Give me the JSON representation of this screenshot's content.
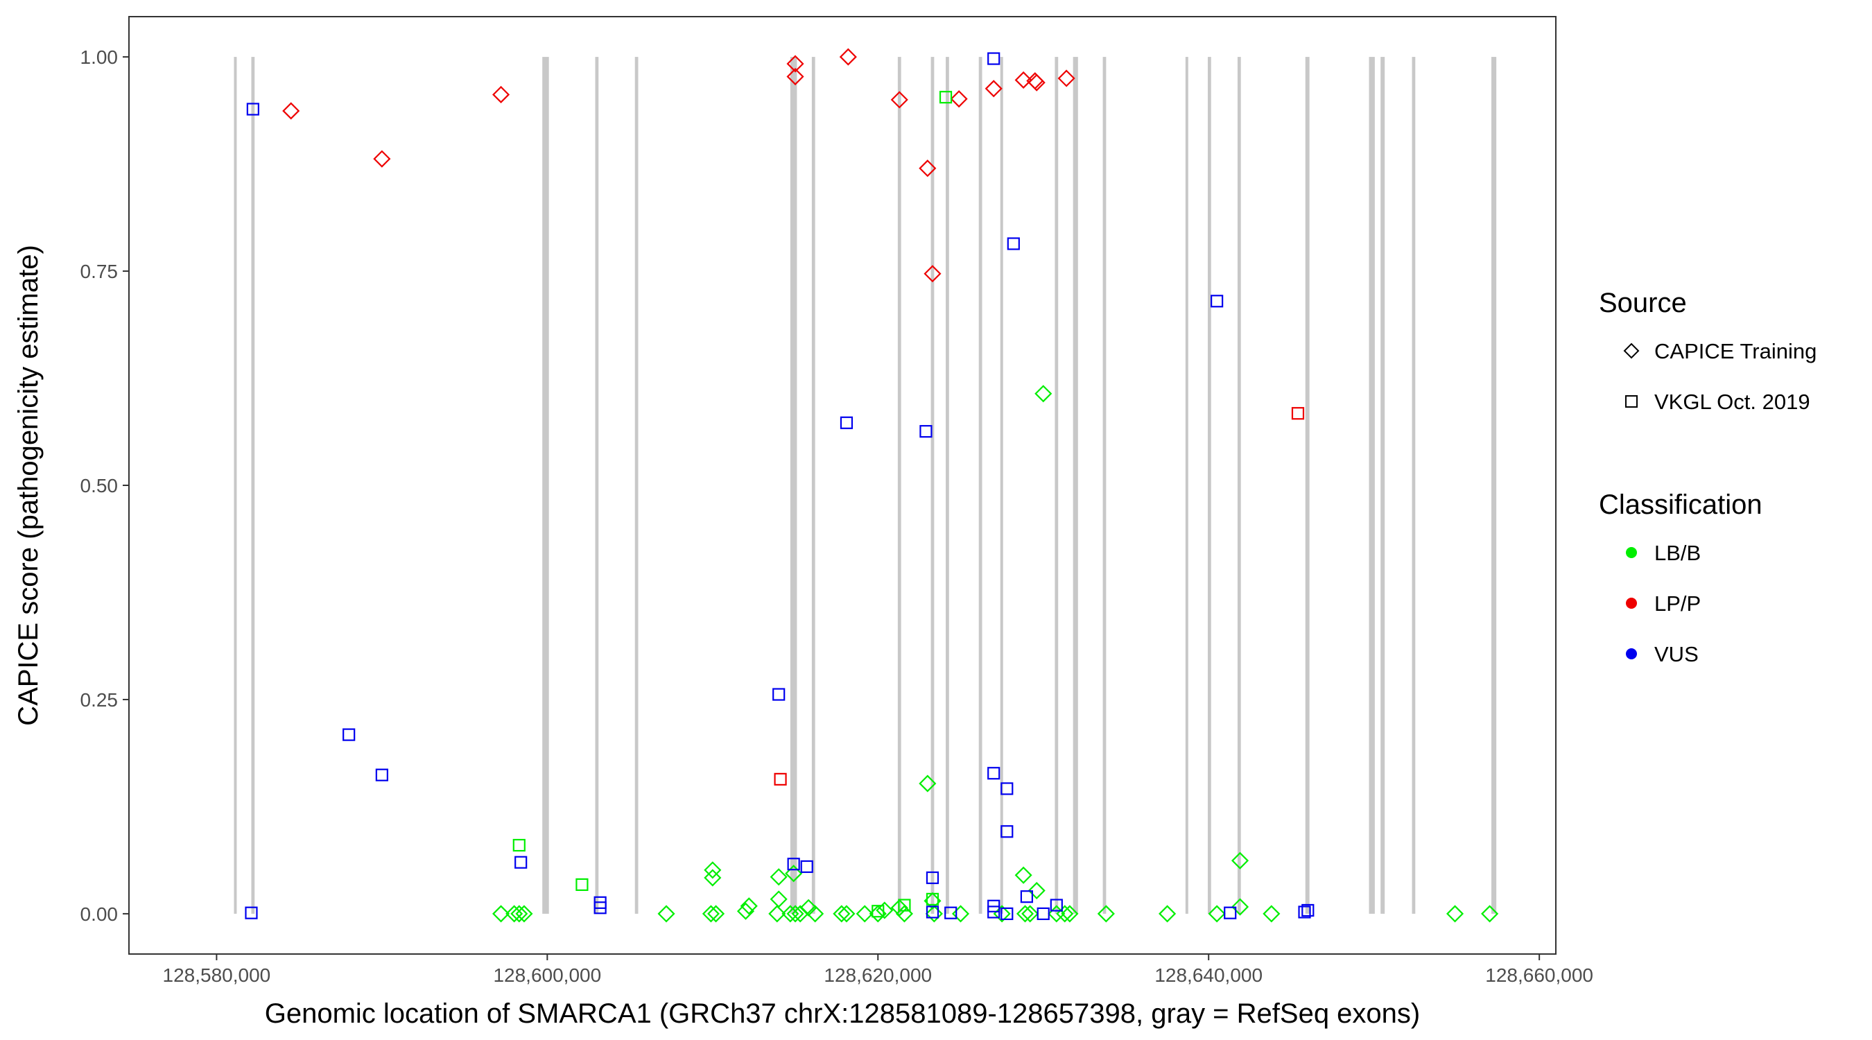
{
  "chart_data": {
    "type": "scatter",
    "xlabel": "Genomic location of SMARCA1 (GRCh37 chrX:128581089-128657398, gray = RefSeq exons)",
    "ylabel": "CAPICE score (pathogenicity estimate)",
    "xlim": [
      128574700,
      128661000
    ],
    "ylim": [
      -0.047,
      1.047
    ],
    "x_ticks": [
      128580000,
      128600000,
      128620000,
      128640000,
      128660000
    ],
    "x_tick_labels": [
      "128,580,000",
      "128,600,000",
      "128,620,000",
      "128,640,000",
      "128,660,000"
    ],
    "y_ticks": [
      0,
      0.25,
      0.5,
      0.75,
      1.0
    ],
    "y_tick_labels": [
      "0.00",
      "0.25",
      "0.50",
      "0.75",
      "1.00"
    ],
    "grid": false,
    "exons": [
      [
        128581050,
        128581200
      ],
      [
        128582100,
        128582300
      ],
      [
        128599700,
        128600100
      ],
      [
        128602900,
        128603100
      ],
      [
        128605300,
        128605500
      ],
      [
        128614700,
        128615100
      ],
      [
        128616000,
        128616200
      ],
      [
        128621200,
        128621400
      ],
      [
        128623200,
        128623400
      ],
      [
        128624100,
        128624300
      ],
      [
        128626100,
        128626300
      ],
      [
        128627400,
        128627550
      ],
      [
        128630700,
        128630900
      ],
      [
        128631800,
        128632100
      ],
      [
        128633600,
        128633800
      ],
      [
        128638600,
        128638750
      ],
      [
        128639950,
        128640150
      ],
      [
        128641750,
        128641950
      ],
      [
        128645850,
        128646100
      ],
      [
        128649700,
        128650050
      ],
      [
        128650400,
        128650650
      ],
      [
        128652300,
        128652500
      ],
      [
        128657100,
        128657400
      ]
    ],
    "legends": [
      {
        "title": "Source",
        "items": [
          {
            "label": "CAPICE Training",
            "shape": "diamond"
          },
          {
            "label": "VKGL Oct. 2019",
            "shape": "square"
          }
        ]
      },
      {
        "title": "Classification",
        "items": [
          {
            "label": "LB/B",
            "color": "#00ee00"
          },
          {
            "label": "LP/P",
            "color": "#ee0000"
          },
          {
            "label": "VUS",
            "color": "#0000ee"
          }
        ]
      }
    ],
    "legend_placement": "right",
    "colors": {
      "LB/B": "#00ee00",
      "LP/P": "#ee0000",
      "VUS": "#0000ee",
      "exon": "#c8c8c8"
    },
    "series": [
      {
        "source": "CAPICE Training",
        "classification": "LP/P",
        "shape": "diamond",
        "points": [
          [
            128584500,
            0.937
          ],
          [
            128590000,
            0.881
          ],
          [
            128597200,
            0.956
          ],
          [
            128615000,
            0.992
          ],
          [
            128615000,
            0.977
          ],
          [
            128618200,
            1.0
          ],
          [
            128621300,
            0.95
          ],
          [
            128623000,
            0.87
          ],
          [
            128623300,
            0.747
          ],
          [
            128624900,
            0.951
          ],
          [
            128627000,
            0.963
          ],
          [
            128628800,
            0.973
          ],
          [
            128629500,
            0.972
          ],
          [
            128629600,
            0.97
          ],
          [
            128631400,
            0.975
          ]
        ]
      },
      {
        "source": "CAPICE Training",
        "classification": "LB/B",
        "shape": "diamond",
        "points": [
          [
            128630000,
            0.607
          ],
          [
            128623000,
            0.152
          ],
          [
            128641900,
            0.062
          ],
          [
            128610000,
            0.051
          ],
          [
            128610000,
            0.042
          ],
          [
            128614000,
            0.043
          ],
          [
            128614900,
            0.047
          ],
          [
            128628800,
            0.045
          ],
          [
            128629600,
            0.027
          ],
          [
            128614000,
            0.017
          ],
          [
            128623300,
            0.015
          ],
          [
            128612200,
            0.009
          ],
          [
            128621300,
            0.007
          ],
          [
            128615800,
            0.007
          ],
          [
            128620400,
            0.004
          ],
          [
            128641900,
            0.008
          ],
          [
            128612000,
            0.003
          ],
          [
            128597200,
            0.0
          ],
          [
            128598000,
            0.0
          ],
          [
            128598300,
            0.0
          ],
          [
            128598600,
            0.0
          ],
          [
            128607200,
            0.0
          ],
          [
            128609900,
            0.0
          ],
          [
            128610200,
            0.0
          ],
          [
            128613900,
            0.0
          ],
          [
            128614700,
            0.0
          ],
          [
            128615000,
            0.0
          ],
          [
            128615300,
            0.0
          ],
          [
            128616200,
            0.0
          ],
          [
            128617800,
            0.0
          ],
          [
            128618100,
            0.0
          ],
          [
            128619200,
            0.0
          ],
          [
            128620000,
            0.0
          ],
          [
            128621600,
            0.0
          ],
          [
            128623400,
            0.0
          ],
          [
            128625000,
            0.0
          ],
          [
            128627500,
            0.0
          ],
          [
            128628900,
            0.0
          ],
          [
            128629200,
            0.0
          ],
          [
            128630800,
            0.0
          ],
          [
            128631300,
            0.0
          ],
          [
            128631600,
            0.0
          ],
          [
            128633800,
            0.0
          ],
          [
            128637500,
            0.0
          ],
          [
            128640500,
            0.0
          ],
          [
            128643800,
            0.0
          ],
          [
            128654900,
            0.0
          ],
          [
            128657000,
            0.0
          ]
        ]
      },
      {
        "source": "VKGL Oct. 2019",
        "classification": "VUS",
        "shape": "square",
        "points": [
          [
            128582200,
            0.939
          ],
          [
            128588000,
            0.209
          ],
          [
            128590000,
            0.162
          ],
          [
            128582100,
            0.001
          ],
          [
            128598400,
            0.06
          ],
          [
            128603200,
            0.013
          ],
          [
            128603200,
            0.007
          ],
          [
            128614000,
            0.256
          ],
          [
            128614900,
            0.058
          ],
          [
            128615700,
            0.055
          ],
          [
            128618100,
            0.573
          ],
          [
            128622900,
            0.563
          ],
          [
            128623300,
            0.042
          ],
          [
            128623300,
            0.002
          ],
          [
            128624400,
            0.001
          ],
          [
            128627000,
            0.998
          ],
          [
            128628200,
            0.782
          ],
          [
            128627000,
            0.164
          ],
          [
            128627800,
            0.146
          ],
          [
            128627800,
            0.096
          ],
          [
            128629000,
            0.02
          ],
          [
            128630800,
            0.01
          ],
          [
            128627000,
            0.009
          ],
          [
            128627000,
            0.002
          ],
          [
            128627800,
            0.0
          ],
          [
            128630000,
            0.0
          ],
          [
            128640500,
            0.715
          ],
          [
            128641300,
            0.001
          ],
          [
            128645800,
            0.002
          ],
          [
            128646000,
            0.004
          ]
        ]
      },
      {
        "source": "VKGL Oct. 2019",
        "classification": "LB/B",
        "shape": "square",
        "points": [
          [
            128598300,
            0.08
          ],
          [
            128602100,
            0.034
          ],
          [
            128624100,
            0.953
          ],
          [
            128623300,
            0.017
          ],
          [
            128621600,
            0.01
          ],
          [
            128620000,
            0.003
          ]
        ]
      },
      {
        "source": "VKGL Oct. 2019",
        "classification": "LP/P",
        "shape": "square",
        "points": [
          [
            128614100,
            0.157
          ],
          [
            128645400,
            0.584
          ]
        ]
      }
    ]
  }
}
